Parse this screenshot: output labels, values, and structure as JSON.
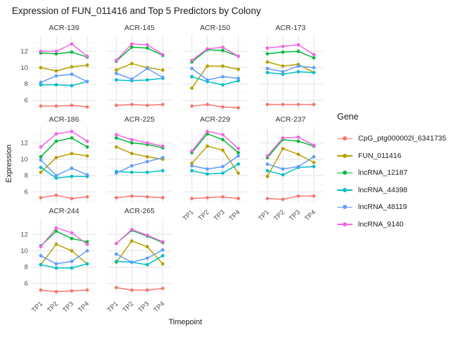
{
  "title": "Expression of FUN_011416 and Top 5 Predictors by Colony",
  "axes": {
    "x_label": "Timepoint",
    "y_label": "Expression",
    "x_ticks": [
      "TP1",
      "TP2",
      "TP3",
      "TP4"
    ],
    "y_ticks": [
      6,
      8,
      10,
      12
    ]
  },
  "legend": {
    "title": "Gene",
    "entries": [
      {
        "label": "CpG_ptg000002l_6341735",
        "color": "#F8766D"
      },
      {
        "label": "FUN_011416",
        "color": "#B79F00"
      },
      {
        "label": "lncRNA_12187",
        "color": "#00BA38"
      },
      {
        "label": "lncRNA_44398",
        "color": "#00BFC4"
      },
      {
        "label": "lncRNA_48119",
        "color": "#619CFF"
      },
      {
        "label": "lncRNA_9140",
        "color": "#F564E3"
      }
    ]
  },
  "chart_data": {
    "type": "line",
    "title": "Expression of FUN_011416 and Top 5 Predictors by Colony",
    "xlabel": "Timepoint",
    "ylabel": "Expression",
    "categories": [
      "TP1",
      "TP2",
      "TP3",
      "TP4"
    ],
    "ylim": [
      4.6,
      14.0
    ],
    "y_major_gridlines": [
      6,
      8,
      10,
      12
    ],
    "y_minor_gridlines": [
      5,
      7,
      9,
      11,
      13
    ],
    "grid": true,
    "legend_position": "right",
    "facet_by": "Colony",
    "facets": [
      {
        "name": "ACR-139",
        "series": [
          {
            "name": "CpG_ptg000002l_6341735",
            "values": [
              5.3,
              5.3,
              5.4,
              5.2
            ]
          },
          {
            "name": "FUN_011416",
            "values": [
              10.0,
              9.6,
              10.1,
              10.3
            ]
          },
          {
            "name": "lncRNA_12187",
            "values": [
              11.8,
              11.7,
              11.9,
              11.3
            ]
          },
          {
            "name": "lncRNA_44398",
            "values": [
              7.9,
              7.9,
              7.8,
              8.3
            ]
          },
          {
            "name": "lncRNA_48119",
            "values": [
              8.2,
              9.0,
              9.2,
              8.3
            ]
          },
          {
            "name": "lncRNA_9140",
            "values": [
              12.0,
              12.0,
              12.9,
              11.4
            ]
          }
        ]
      },
      {
        "name": "ACR-145",
        "series": [
          {
            "name": "CpG_ptg000002l_6341735",
            "values": [
              5.4,
              5.5,
              5.4,
              5.5
            ]
          },
          {
            "name": "FUN_011416",
            "values": [
              9.7,
              10.5,
              10.0,
              9.7
            ]
          },
          {
            "name": "lncRNA_12187",
            "values": [
              10.8,
              12.5,
              12.4,
              11.5
            ]
          },
          {
            "name": "lncRNA_44398",
            "values": [
              8.5,
              8.4,
              8.5,
              8.7
            ]
          },
          {
            "name": "lncRNA_48119",
            "values": [
              9.3,
              8.6,
              9.9,
              8.8
            ]
          },
          {
            "name": "lncRNA_9140",
            "values": [
              10.9,
              12.9,
              12.8,
              11.6
            ]
          }
        ]
      },
      {
        "name": "ACR-150",
        "series": [
          {
            "name": "CpG_ptg000002l_6341735",
            "values": [
              5.3,
              5.5,
              5.2,
              5.1
            ]
          },
          {
            "name": "FUN_011416",
            "values": [
              7.5,
              10.2,
              10.2,
              9.8
            ]
          },
          {
            "name": "lncRNA_12187",
            "values": [
              10.7,
              12.2,
              12.1,
              11.4
            ]
          },
          {
            "name": "lncRNA_44398",
            "values": [
              8.9,
              8.3,
              7.9,
              8.4
            ]
          },
          {
            "name": "lncRNA_48119",
            "values": [
              9.9,
              8.5,
              8.9,
              8.7
            ]
          },
          {
            "name": "lncRNA_9140",
            "values": [
              10.9,
              12.3,
              12.5,
              11.4
            ]
          }
        ]
      },
      {
        "name": "ACR-173",
        "series": [
          {
            "name": "CpG_ptg000002l_6341735",
            "values": [
              5.5,
              5.5,
              5.5,
              5.5
            ]
          },
          {
            "name": "FUN_011416",
            "values": [
              10.7,
              10.2,
              10.4,
              9.4
            ]
          },
          {
            "name": "lncRNA_12187",
            "values": [
              11.7,
              11.9,
              12.0,
              11.2
            ]
          },
          {
            "name": "lncRNA_44398",
            "values": [
              9.4,
              9.2,
              9.5,
              9.4
            ]
          },
          {
            "name": "lncRNA_48119",
            "values": [
              9.9,
              9.5,
              10.2,
              10.0
            ]
          },
          {
            "name": "lncRNA_9140",
            "values": [
              12.4,
              12.6,
              12.8,
              11.6
            ]
          }
        ]
      },
      {
        "name": "ACR-186",
        "series": [
          {
            "name": "CpG_ptg000002l_6341735",
            "values": [
              5.3,
              5.6,
              5.2,
              5.4
            ]
          },
          {
            "name": "FUN_011416",
            "values": [
              8.4,
              10.2,
              10.7,
              10.4
            ]
          },
          {
            "name": "lncRNA_12187",
            "values": [
              10.3,
              12.2,
              12.6,
              11.5
            ]
          },
          {
            "name": "lncRNA_44398",
            "values": [
              9.0,
              7.7,
              7.9,
              7.9
            ]
          },
          {
            "name": "lncRNA_48119",
            "values": [
              9.9,
              8.0,
              8.9,
              8.1
            ]
          },
          {
            "name": "lncRNA_9140",
            "values": [
              11.5,
              13.1,
              13.4,
              12.2
            ]
          }
        ]
      },
      {
        "name": "ACR-225",
        "series": [
          {
            "name": "CpG_ptg000002l_6341735",
            "values": [
              5.3,
              5.5,
              5.4,
              5.3
            ]
          },
          {
            "name": "FUN_011416",
            "values": [
              11.5,
              10.7,
              10.3,
              10.0
            ]
          },
          {
            "name": "lncRNA_12187",
            "values": [
              12.6,
              12.0,
              11.8,
              11.4
            ]
          },
          {
            "name": "lncRNA_44398",
            "values": [
              8.5,
              8.4,
              8.4,
              8.6
            ]
          },
          {
            "name": "lncRNA_48119",
            "values": [
              8.3,
              9.2,
              9.7,
              10.2
            ]
          },
          {
            "name": "lncRNA_9140",
            "values": [
              13.0,
              12.4,
              12.0,
              11.6
            ]
          }
        ]
      },
      {
        "name": "ACR-229",
        "series": [
          {
            "name": "CpG_ptg000002l_6341735",
            "values": [
              5.2,
              5.3,
              5.4,
              5.2
            ]
          },
          {
            "name": "FUN_011416",
            "values": [
              9.5,
              11.6,
              11.1,
              8.3
            ]
          },
          {
            "name": "lncRNA_12187",
            "values": [
              10.8,
              13.1,
              12.4,
              10.8
            ]
          },
          {
            "name": "lncRNA_44398",
            "values": [
              8.6,
              8.2,
              8.3,
              9.4
            ]
          },
          {
            "name": "lncRNA_48119",
            "values": [
              9.2,
              8.8,
              9.1,
              10.4
            ]
          },
          {
            "name": "lncRNA_9140",
            "values": [
              11.0,
              13.4,
              13.0,
              11.3
            ]
          }
        ]
      },
      {
        "name": "ACR-237",
        "series": [
          {
            "name": "CpG_ptg000002l_6341735",
            "values": [
              5.2,
              5.1,
              5.5,
              5.5
            ]
          },
          {
            "name": "FUN_011416",
            "values": [
              7.9,
              11.3,
              10.6,
              9.6
            ]
          },
          {
            "name": "lncRNA_12187",
            "values": [
              10.2,
              12.4,
              12.2,
              11.6
            ]
          },
          {
            "name": "lncRNA_44398",
            "values": [
              8.6,
              8.1,
              9.0,
              9.1
            ]
          },
          {
            "name": "lncRNA_48119",
            "values": [
              9.4,
              8.8,
              9.1,
              10.3
            ]
          },
          {
            "name": "lncRNA_9140",
            "values": [
              10.4,
              12.6,
              12.7,
              11.7
            ]
          }
        ]
      },
      {
        "name": "ACR-244",
        "series": [
          {
            "name": "CpG_ptg000002l_6341735",
            "values": [
              5.2,
              5.0,
              5.1,
              5.2
            ]
          },
          {
            "name": "FUN_011416",
            "values": [
              8.3,
              10.8,
              10.0,
              8.4
            ]
          },
          {
            "name": "lncRNA_12187",
            "values": [
              10.6,
              12.4,
              11.5,
              11.1
            ]
          },
          {
            "name": "lncRNA_44398",
            "values": [
              8.3,
              7.9,
              7.9,
              8.4
            ]
          },
          {
            "name": "lncRNA_48119",
            "values": [
              9.4,
              8.4,
              8.7,
              10.0
            ]
          },
          {
            "name": "lncRNA_9140",
            "values": [
              10.5,
              12.8,
              12.2,
              10.8
            ]
          }
        ]
      },
      {
        "name": "ACR-265",
        "series": [
          {
            "name": "CpG_ptg000002l_6341735",
            "values": [
              5.5,
              5.2,
              5.2,
              5.4
            ]
          },
          {
            "name": "FUN_011416",
            "values": [
              8.6,
              11.2,
              10.5,
              8.4
            ]
          },
          {
            "name": "lncRNA_12187",
            "values": [
              10.9,
              12.5,
              11.8,
              11.0
            ]
          },
          {
            "name": "lncRNA_44398",
            "values": [
              8.7,
              8.6,
              8.3,
              9.4
            ]
          },
          {
            "name": "lncRNA_48119",
            "values": [
              9.6,
              8.6,
              9.1,
              10.1
            ]
          },
          {
            "name": "lncRNA_9140",
            "values": [
              10.9,
              12.6,
              11.9,
              11.1
            ]
          }
        ]
      }
    ]
  }
}
